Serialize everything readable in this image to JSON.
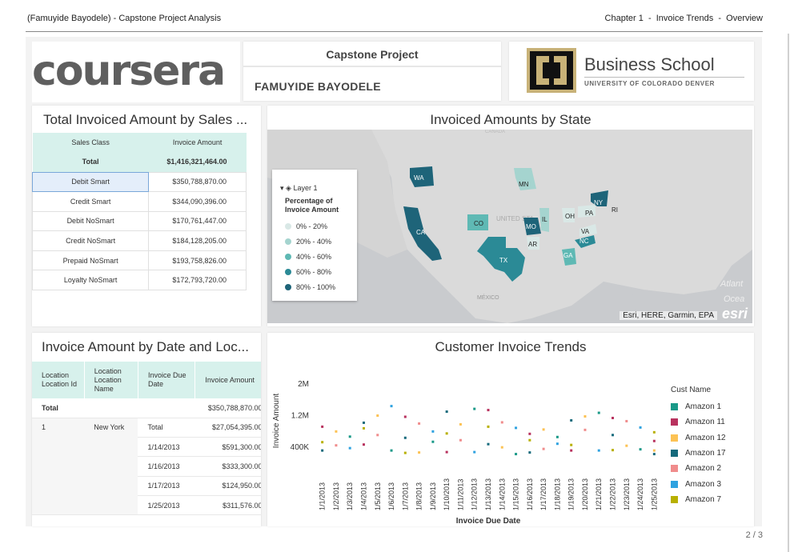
{
  "report": {
    "left_header": "(Famuyide Bayodele) - Capstone Project Analysis",
    "right_header": "Chapter 1  -  Invoice Trends  -  Overview",
    "page_number": "2 / 3"
  },
  "logos": {
    "coursera": "coursera",
    "business_school": "Business School",
    "university": "UNIVERSITY OF COLORADO DENVER"
  },
  "project": {
    "title": "Capstone Project",
    "author": "FAMUYIDE BAYODELE"
  },
  "sales_class_table": {
    "title": "Total Invoiced Amount by Sales ...",
    "columns": [
      "Sales Class",
      "Invoice Amount"
    ],
    "total_label": "Total",
    "total_value": "$1,416,321,464.00",
    "rows": [
      {
        "class": "Debit Smart",
        "amount": "$350,788,870.00"
      },
      {
        "class": "Credit Smart",
        "amount": "$344,090,396.00"
      },
      {
        "class": "Debit NoSmart",
        "amount": "$170,761,447.00"
      },
      {
        "class": "Credit NoSmart",
        "amount": "$184,128,205.00"
      },
      {
        "class": "Prepaid NoSmart",
        "amount": "$193,758,826.00"
      },
      {
        "class": "Loyalty NoSmart",
        "amount": "$172,793,720.00"
      }
    ],
    "selected_row": "Debit Smart"
  },
  "state_map": {
    "title": "Invoiced Amounts by State",
    "legend": {
      "layer": "Layer 1",
      "title": "Percentage of Invoice Amount",
      "classes": [
        {
          "label": "0% - 20%",
          "color": "#d9e8e6"
        },
        {
          "label": "20% - 40%",
          "color": "#a5d4cf"
        },
        {
          "label": "40% - 60%",
          "color": "#5fb9b4"
        },
        {
          "label": "60% - 80%",
          "color": "#2b8a96"
        },
        {
          "label": "80% - 100%",
          "color": "#1e6479"
        }
      ]
    },
    "state_labels": [
      "WA",
      "MN",
      "NY",
      "RI",
      "PA",
      "OH",
      "IL",
      "CO",
      "MO",
      "CA",
      "VA",
      "NC",
      "AR",
      "TX",
      "GA"
    ],
    "basemap_labels": [
      "UNITED STA",
      "MÉXICO",
      "Atlant",
      "Ocea",
      "CANADA"
    ],
    "attribution": "Esri, HERE, Garmin, EPA",
    "brand": "esri"
  },
  "date_location_table": {
    "title": "Invoice Amount by Date and Loc...",
    "columns": [
      "Location Location Id",
      "Location Location Name",
      "Invoice Due Date",
      "Invoice Amount"
    ],
    "total_label": "Total",
    "total_value": "$350,788,870.00",
    "location": {
      "id": "1",
      "name": "New York",
      "subtotal_label": "Total",
      "subtotal_value": "$27,054,395.00"
    },
    "rows": [
      {
        "date": "1/14/2013",
        "amount": "$591,300.00"
      },
      {
        "date": "1/16/2013",
        "amount": "$333,300.00"
      },
      {
        "date": "1/17/2013",
        "amount": "$124,950.00"
      },
      {
        "date": "1/25/2013",
        "amount": "$311,576.00"
      }
    ]
  },
  "customer_trends": {
    "title": "Customer Invoice Trends",
    "legend_title": "Cust Name",
    "customers": [
      {
        "name": "Amazon 1",
        "color": "#1a9988"
      },
      {
        "name": "Amazon 11",
        "color": "#b8325e"
      },
      {
        "name": "Amazon 12",
        "color": "#fcc254"
      },
      {
        "name": "Amazon 17",
        "color": "#166a7c"
      },
      {
        "name": "Amazon 2",
        "color": "#f08c8c"
      },
      {
        "name": "Amazon 3",
        "color": "#2fa2e0"
      },
      {
        "name": "Amazon 7",
        "color": "#b8b000"
      }
    ],
    "other_color": "#333333"
  },
  "chart_data": {
    "type": "scatter",
    "title": "Customer Invoice Trends",
    "xlabel": "Invoice Due Date",
    "ylabel": "Invoice Amount",
    "x_ticks": [
      "1/1/2013",
      "1/2/2013",
      "1/3/2013",
      "1/4/2013",
      "1/5/2013",
      "1/6/2013",
      "1/7/2013",
      "1/8/2013",
      "1/9/2013",
      "1/10/2013",
      "1/11/2013",
      "1/12/2013",
      "1/13/2013",
      "1/14/2013",
      "1/15/2013",
      "1/16/2013",
      "1/17/2013",
      "1/18/2013",
      "1/19/2013",
      "1/20/2013",
      "1/21/2013",
      "1/22/2013",
      "1/23/2013",
      "1/24/2013",
      "1/25/2013"
    ],
    "y_ticks": [
      "400K",
      "1.2M",
      "2M"
    ],
    "y_tick_values": [
      400000,
      1200000,
      2000000
    ],
    "ylim": [
      0,
      2300000
    ],
    "legend_title": "Cust Name",
    "legend_position": "right",
    "series": [
      {
        "name": "Amazon 1",
        "points": [
          [
            3,
            650000
          ],
          [
            6,
            300000
          ],
          [
            9,
            520000
          ],
          [
            12,
            1350000
          ],
          [
            15,
            210000
          ],
          [
            18,
            640000
          ],
          [
            21,
            1250000
          ],
          [
            24,
            330000
          ]
        ]
      },
      {
        "name": "Amazon 11",
        "points": [
          [
            1,
            900000
          ],
          [
            4,
            450000
          ],
          [
            7,
            1150000
          ],
          [
            10,
            260000
          ],
          [
            13,
            1320000
          ],
          [
            16,
            720000
          ],
          [
            19,
            300000
          ],
          [
            22,
            1120000
          ],
          [
            25,
            540000
          ]
        ]
      },
      {
        "name": "Amazon 12",
        "points": [
          [
            2,
            780000
          ],
          [
            5,
            1180000
          ],
          [
            8,
            250000
          ],
          [
            11,
            960000
          ],
          [
            14,
            380000
          ],
          [
            17,
            830000
          ],
          [
            20,
            1160000
          ],
          [
            23,
            420000
          ],
          [
            25,
            300000
          ]
        ]
      },
      {
        "name": "Amazon 17",
        "points": [
          [
            1,
            300000
          ],
          [
            4,
            1000000
          ],
          [
            7,
            620000
          ],
          [
            10,
            1280000
          ],
          [
            13,
            460000
          ],
          [
            16,
            250000
          ],
          [
            19,
            1060000
          ],
          [
            22,
            690000
          ],
          [
            25,
            210000
          ]
        ]
      },
      {
        "name": "Amazon 2",
        "points": [
          [
            2,
            430000
          ],
          [
            5,
            690000
          ],
          [
            8,
            980000
          ],
          [
            11,
            560000
          ],
          [
            14,
            1010000
          ],
          [
            17,
            340000
          ],
          [
            20,
            820000
          ],
          [
            23,
            1040000
          ]
        ]
      },
      {
        "name": "Amazon 3",
        "points": [
          [
            3,
            360000
          ],
          [
            6,
            1420000
          ],
          [
            9,
            780000
          ],
          [
            12,
            260000
          ],
          [
            15,
            870000
          ],
          [
            18,
            470000
          ],
          [
            21,
            300000
          ],
          [
            24,
            880000
          ]
        ]
      },
      {
        "name": "Amazon 7",
        "points": [
          [
            1,
            510000
          ],
          [
            4,
            860000
          ],
          [
            7,
            240000
          ],
          [
            10,
            730000
          ],
          [
            13,
            900000
          ],
          [
            16,
            560000
          ],
          [
            19,
            440000
          ],
          [
            22,
            310000
          ],
          [
            25,
            760000
          ]
        ]
      }
    ]
  }
}
